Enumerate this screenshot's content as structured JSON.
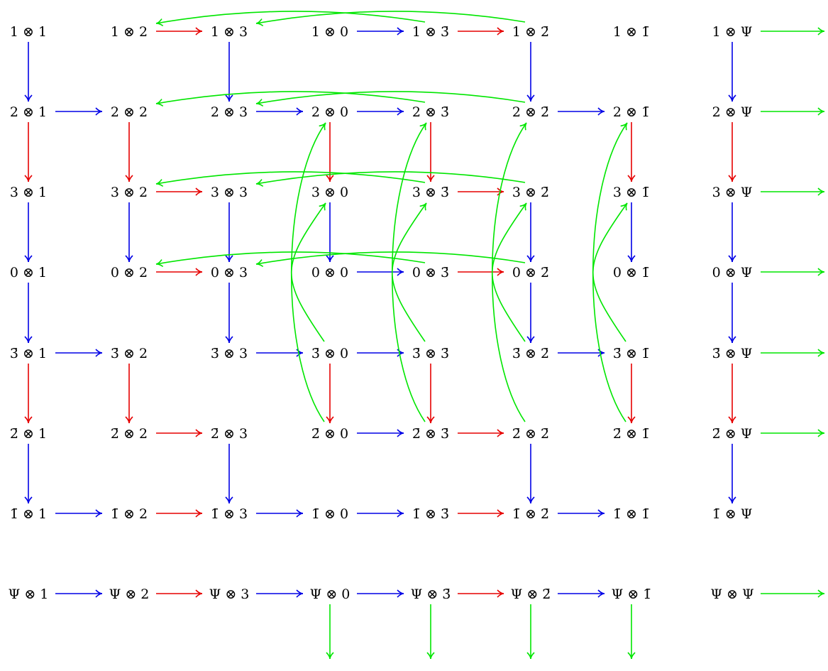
{
  "nodes": {
    "1_1": "1 ⊗ 1",
    "1_2": "1 ⊗ 2",
    "1_3": "1 ⊗ 3",
    "1_0": "1 ⊗ 0",
    "1_3b": "1 ⊗ 3̄",
    "1_2b": "1 ⊗ 2̄",
    "1_1b": "1 ⊗ 1̄",
    "1_Psi": "1 ⊗ Ψ",
    "2_1": "2 ⊗ 1",
    "2_2": "2 ⊗ 2",
    "2_3": "2 ⊗ 3",
    "2_0": "2 ⊗ 0",
    "2_3b": "2 ⊗ 3̄",
    "2_2b": "2 ⊗ 2̄",
    "2_1b": "2 ⊗ 1̄",
    "2_Psi": "2 ⊗ Ψ",
    "3_1": "3 ⊗ 1",
    "3_2": "3 ⊗ 2",
    "3_3": "3 ⊗ 3",
    "3_0": "3 ⊗ 0",
    "3_3b": "3 ⊗ 3̄",
    "3_2b": "3 ⊗ 2̄",
    "3_1b": "3 ⊗ 1̄",
    "3_Psi": "3 ⊗ Ψ",
    "0_1": "0 ⊗ 1",
    "0_2": "0 ⊗ 2",
    "0_3": "0 ⊗ 3",
    "0_0": "0 ⊗ 0",
    "0_3b": "0 ⊗ 3̄",
    "0_2b": "0 ⊗ 2̄",
    "0_1b": "0 ⊗ 1̄",
    "0_Psi": "0 ⊗ Ψ",
    "3b_1": "3̄ ⊗ 1",
    "3b_2": "3̄ ⊗ 2",
    "3b_3": "3̄ ⊗ 3",
    "3b_0": "3̄ ⊗ 0",
    "3b_3b": "3̄ ⊗ 3̄",
    "3b_2b": "3̄ ⊗ 2̄",
    "3b_1b": "3̄ ⊗ 1̄",
    "3b_Psi": "3̄ ⊗ Ψ",
    "2b_1": "2̄ ⊗ 1",
    "2b_2": "2̄ ⊗ 2",
    "2b_3": "2̄ ⊗ 3",
    "2b_0": "2̄ ⊗ 0",
    "2b_3b": "2̄ ⊗ 3̄",
    "2b_2b": "2̄ ⊗ 2̄",
    "2b_1b": "2̄ ⊗ 1̄",
    "2b_Psi": "2̄ ⊗ Ψ",
    "1b_1": "1̄ ⊗ 1",
    "1b_2": "1̄ ⊗ 2",
    "1b_3": "1̄ ⊗ 3",
    "1b_0": "1̄ ⊗ 0",
    "1b_3b": "1̄ ⊗ 3̄",
    "1b_2b": "1̄ ⊗ 2̄",
    "1b_1b": "1̄ ⊗ 1̄",
    "1b_Psi": "1̄ ⊗ Ψ",
    "Psi_1": "Ψ ⊗ 1",
    "Psi_2": "Ψ ⊗ 2",
    "Psi_3": "Ψ ⊗ 3",
    "Psi_0": "Ψ ⊗ 0",
    "Psi_3b": "Ψ ⊗ 3̄",
    "Psi_2b": "Ψ ⊗ 2̄",
    "Psi_1b": "Ψ ⊗ 1̄",
    "Psi_Psi": "Ψ ⊗ Ψ"
  },
  "colors": {
    "blue": "#0000e6",
    "red": "#e60000",
    "green": "#00e600"
  },
  "arrows": {
    "horizontal": [
      {
        "from": "1_2",
        "to": "1_3",
        "color": "red"
      },
      {
        "from": "1_0",
        "to": "1_3b",
        "color": "blue"
      },
      {
        "from": "1_3b",
        "to": "1_2b",
        "color": "red"
      },
      {
        "from": "2_1",
        "to": "2_2",
        "color": "blue"
      },
      {
        "from": "2_3",
        "to": "2_0",
        "color": "blue"
      },
      {
        "from": "2_0",
        "to": "2_3b",
        "color": "blue"
      },
      {
        "from": "2_2b",
        "to": "2_1b",
        "color": "blue"
      },
      {
        "from": "3_2",
        "to": "3_3",
        "color": "red"
      },
      {
        "from": "3_3b",
        "to": "3_2b",
        "color": "red"
      },
      {
        "from": "0_2",
        "to": "0_3",
        "color": "red"
      },
      {
        "from": "0_0",
        "to": "0_3b",
        "color": "blue"
      },
      {
        "from": "0_3b",
        "to": "0_2b",
        "color": "red"
      },
      {
        "from": "3b_1",
        "to": "3b_2",
        "color": "blue"
      },
      {
        "from": "3b_3",
        "to": "3b_0",
        "color": "blue"
      },
      {
        "from": "3b_0",
        "to": "3b_3b",
        "color": "blue"
      },
      {
        "from": "3b_2b",
        "to": "3b_1b",
        "color": "blue"
      },
      {
        "from": "2b_2",
        "to": "2b_3",
        "color": "red"
      },
      {
        "from": "2b_0",
        "to": "2b_3b",
        "color": "blue"
      },
      {
        "from": "2b_3b",
        "to": "2b_2b",
        "color": "red"
      },
      {
        "from": "1b_1",
        "to": "1b_2",
        "color": "blue"
      },
      {
        "from": "1b_2",
        "to": "1b_3",
        "color": "red"
      },
      {
        "from": "1b_3",
        "to": "1b_0",
        "color": "blue"
      },
      {
        "from": "1b_0",
        "to": "1b_3b",
        "color": "blue"
      },
      {
        "from": "1b_3b",
        "to": "1b_2b",
        "color": "red"
      },
      {
        "from": "1b_2b",
        "to": "1b_1b",
        "color": "blue"
      },
      {
        "from": "Psi_1",
        "to": "Psi_2",
        "color": "blue"
      },
      {
        "from": "Psi_2",
        "to": "Psi_3",
        "color": "red"
      },
      {
        "from": "Psi_3",
        "to": "Psi_0",
        "color": "blue"
      },
      {
        "from": "Psi_0",
        "to": "Psi_3b",
        "color": "blue"
      },
      {
        "from": "Psi_3b",
        "to": "Psi_2b",
        "color": "red"
      },
      {
        "from": "Psi_2b",
        "to": "Psi_1b",
        "color": "blue"
      }
    ],
    "vertical": [
      {
        "from": "1_1",
        "to": "2_1",
        "color": "blue"
      },
      {
        "from": "1_3",
        "to": "2_3",
        "color": "blue"
      },
      {
        "from": "1_2b",
        "to": "2_2b",
        "color": "blue"
      },
      {
        "from": "1_Psi",
        "to": "2_Psi",
        "color": "blue"
      },
      {
        "from": "2_1",
        "to": "3_1",
        "color": "red"
      },
      {
        "from": "2_2",
        "to": "3_2",
        "color": "red"
      },
      {
        "from": "2_0",
        "to": "3_0",
        "color": "red"
      },
      {
        "from": "2_3b",
        "to": "3_3b",
        "color": "red"
      },
      {
        "from": "2_1b",
        "to": "3_1b",
        "color": "red"
      },
      {
        "from": "2_Psi",
        "to": "3_Psi",
        "color": "red"
      },
      {
        "from": "3_1",
        "to": "0_1",
        "color": "blue"
      },
      {
        "from": "3_2",
        "to": "0_2",
        "color": "blue"
      },
      {
        "from": "3_3",
        "to": "0_3",
        "color": "blue"
      },
      {
        "from": "3_0",
        "to": "0_0",
        "color": "blue"
      },
      {
        "from": "3_2b",
        "to": "0_2b",
        "color": "blue"
      },
      {
        "from": "3_1b",
        "to": "0_1b",
        "color": "blue"
      },
      {
        "from": "3_Psi",
        "to": "0_Psi",
        "color": "blue"
      },
      {
        "from": "0_1",
        "to": "3b_1",
        "color": "blue"
      },
      {
        "from": "0_3",
        "to": "3b_3",
        "color": "blue"
      },
      {
        "from": "0_2b",
        "to": "3b_2b",
        "color": "blue"
      },
      {
        "from": "0_Psi",
        "to": "3b_Psi",
        "color": "blue"
      },
      {
        "from": "3b_1",
        "to": "2b_1",
        "color": "red"
      },
      {
        "from": "3b_2",
        "to": "2b_2",
        "color": "red"
      },
      {
        "from": "3b_0",
        "to": "2b_0",
        "color": "red"
      },
      {
        "from": "3b_3b",
        "to": "2b_3b",
        "color": "red"
      },
      {
        "from": "3b_1b",
        "to": "2b_1b",
        "color": "red"
      },
      {
        "from": "3b_Psi",
        "to": "2b_Psi",
        "color": "red"
      },
      {
        "from": "2b_1",
        "to": "1b_1",
        "color": "blue"
      },
      {
        "from": "2b_3",
        "to": "1b_3",
        "color": "blue"
      },
      {
        "from": "2b_2b",
        "to": "1b_2b",
        "color": "blue"
      },
      {
        "from": "2b_Psi",
        "to": "1b_Psi",
        "color": "blue"
      }
    ],
    "out_right": [
      "1_Psi",
      "2_Psi",
      "3_Psi",
      "0_Psi",
      "3b_Psi",
      "2b_Psi",
      "Psi_Psi"
    ],
    "out_down": [
      "Psi_0",
      "Psi_3b",
      "Psi_2b",
      "Psi_1b"
    ],
    "arcs_top": [
      {
        "from": "1_3b",
        "to": "1_2"
      },
      {
        "from": "1_2b",
        "to": "1_3"
      },
      {
        "from": "2_3b",
        "to": "2_2"
      },
      {
        "from": "2_2b",
        "to": "2_3"
      },
      {
        "from": "3_3b",
        "to": "3_2"
      },
      {
        "from": "3_2b",
        "to": "3_3"
      },
      {
        "from": "0_3b",
        "to": "0_2"
      },
      {
        "from": "0_2b",
        "to": "0_3"
      }
    ],
    "arcs_up": [
      {
        "from": "3b_0",
        "to": "3_0",
        "bend": "left"
      },
      {
        "from": "2b_0",
        "to": "2_0",
        "bend": "left"
      },
      {
        "from": "3b_3b",
        "to": "3_3b",
        "bend": "left"
      },
      {
        "from": "2b_3b",
        "to": "2_3b",
        "bend": "left"
      },
      {
        "from": "3b_2b",
        "to": "3_2b",
        "bend": "left"
      },
      {
        "from": "2b_2b",
        "to": "2_2b",
        "bend": "left"
      },
      {
        "from": "3b_1b",
        "to": "3_1b",
        "bend": "left"
      },
      {
        "from": "2b_1b",
        "to": "2_1b",
        "bend": "left"
      }
    ]
  }
}
